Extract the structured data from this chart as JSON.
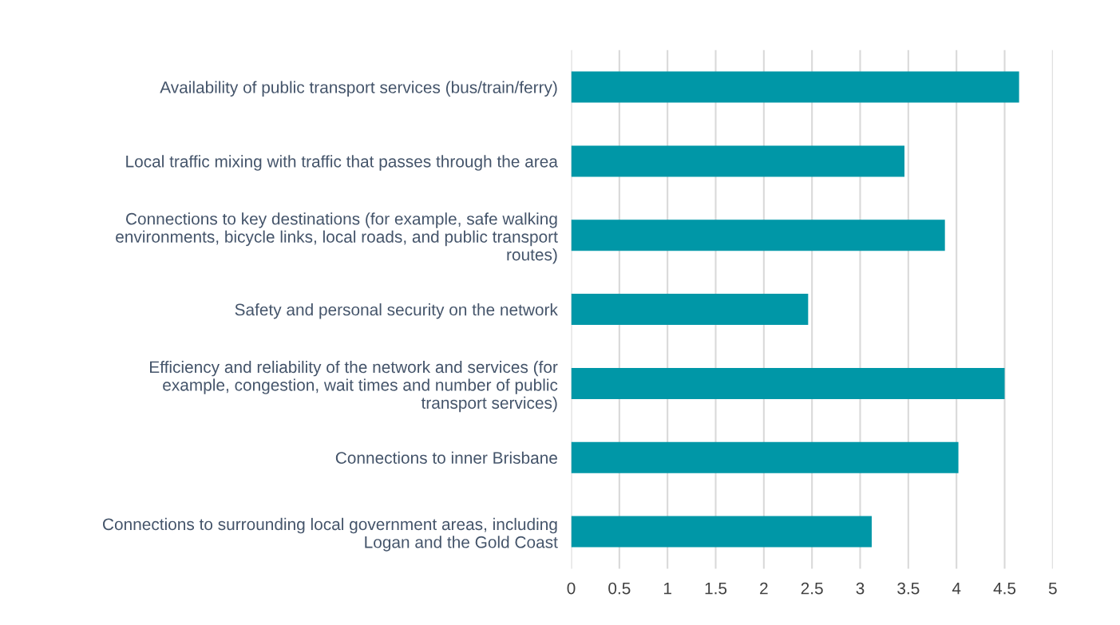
{
  "chart_data": {
    "type": "bar",
    "orientation": "horizontal",
    "categories": [
      "Availability of public transport services (bus/train/ferry)",
      "Local traffic mixing with traffic that passes through the area",
      "Connections to key destinations (for example, safe walking\nenvironments, bicycle links, local roads, and public transport\nroutes)",
      "Safety and personal security on the network",
      "Efficiency and reliability of the network and services (for\nexample, congestion, wait times and number of public\ntransport services)",
      "Connections to inner Brisbane",
      "Connections to surrounding local government areas, including\nLogan and the Gold Coast"
    ],
    "values": [
      4.65,
      3.46,
      3.88,
      2.46,
      4.5,
      4.02,
      3.12
    ],
    "color": "#0097a7",
    "xlim": [
      0,
      5
    ],
    "xticks": [
      0,
      0.5,
      1,
      1.5,
      2,
      2.5,
      3,
      3.5,
      4,
      4.5,
      5
    ],
    "grid": "x"
  }
}
